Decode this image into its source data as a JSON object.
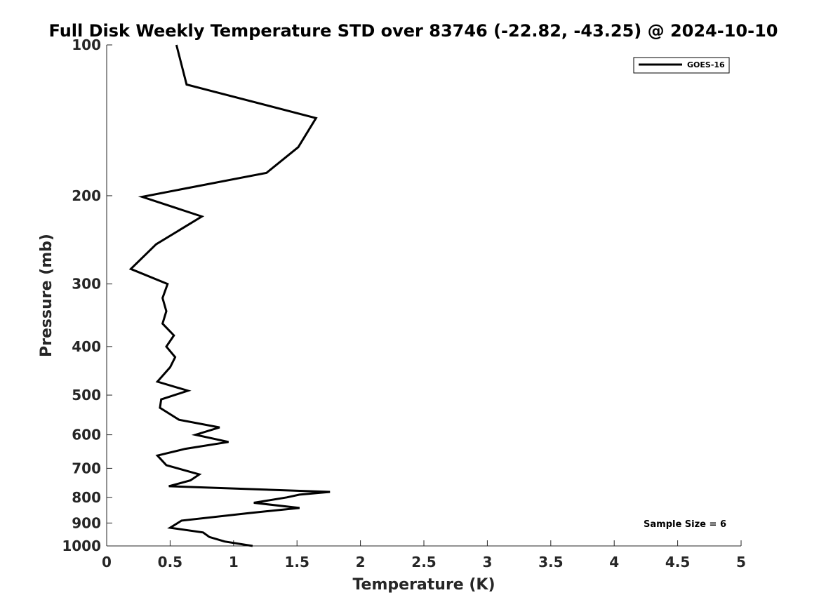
{
  "chart_data": {
    "type": "line",
    "title": "Full Disk Weekly Temperature STD over 83746 (-22.82, -43.25) @ 2024-10-10",
    "xlabel": "Temperature (K)",
    "ylabel": "Pressure (mb)",
    "xlim": [
      0,
      5
    ],
    "ylim": [
      100,
      1000
    ],
    "yscale": "log",
    "y_reversed": true,
    "xticks": [
      0,
      0.5,
      1,
      1.5,
      2,
      2.5,
      3,
      3.5,
      4,
      4.5,
      5
    ],
    "xtick_labels": [
      "0",
      "0.5",
      "1",
      "1.5",
      "2",
      "2.5",
      "3",
      "3.5",
      "4",
      "4.5",
      "5"
    ],
    "yticks": [
      100,
      200,
      300,
      400,
      500,
      600,
      700,
      800,
      900,
      1000
    ],
    "ytick_labels": [
      "100",
      "200",
      "300",
      "400",
      "500",
      "600",
      "700",
      "800",
      "900",
      "1000"
    ],
    "grid": false,
    "legend_position": "top-right",
    "series": [
      {
        "name": "GOES-16",
        "color": "#000000",
        "x": [
          0.55,
          0.63,
          1.65,
          1.51,
          1.26,
          0.28,
          0.75,
          0.39,
          0.19,
          0.48,
          0.44,
          0.47,
          0.44,
          0.53,
          0.47,
          0.54,
          0.5,
          0.4,
          0.64,
          0.43,
          0.42,
          0.57,
          0.89,
          0.7,
          0.96,
          0.62,
          0.4,
          0.47,
          0.73,
          0.66,
          0.49,
          1.76,
          1.52,
          1.42,
          1.16,
          1.52,
          1.12,
          0.59,
          0.5,
          0.76,
          0.81,
          0.93,
          1.15
        ],
        "y": [
          100,
          120,
          140,
          160,
          180,
          201,
          220,
          250,
          280,
          300,
          320,
          340,
          360,
          380,
          400,
          420,
          440,
          470,
          490,
          510,
          530,
          560,
          580,
          600,
          620,
          640,
          660,
          690,
          720,
          740,
          760,
          780,
          790,
          800,
          820,
          840,
          860,
          890,
          920,
          940,
          960,
          980,
          1000
        ]
      }
    ],
    "annotations": [
      "Sample Size = 6"
    ]
  }
}
